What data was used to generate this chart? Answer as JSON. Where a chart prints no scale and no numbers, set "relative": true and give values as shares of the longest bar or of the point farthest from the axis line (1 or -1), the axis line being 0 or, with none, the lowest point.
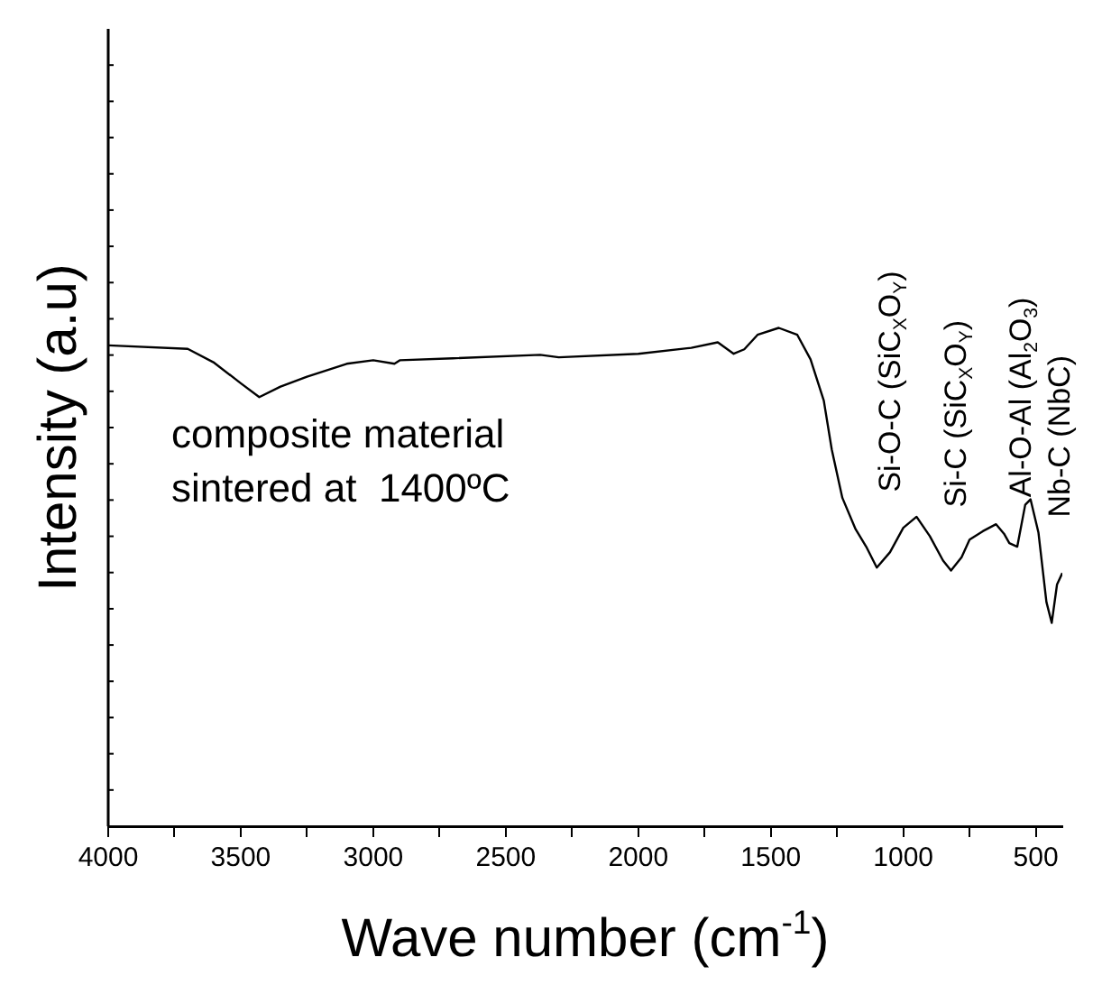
{
  "chart_data": {
    "type": "line",
    "relative": true,
    "xlabel": "Wave number (cm$^{-1}$)",
    "ylabel": "Intensity (a.u)",
    "color": "#000000",
    "marker": "none",
    "grid": false,
    "legend": false,
    "x": [
      4000,
      3700,
      3600,
      3500,
      3430,
      3350,
      3250,
      3100,
      3000,
      2920,
      2900,
      2700,
      2370,
      2300,
      2000,
      1800,
      1700,
      1640,
      1600,
      1550,
      1470,
      1400,
      1350,
      1300,
      1270,
      1230,
      1180,
      1140,
      1100,
      1050,
      1000,
      950,
      900,
      850,
      820,
      780,
      750,
      700,
      650,
      620,
      600,
      570,
      540,
      520,
      490,
      460,
      440,
      420,
      400
    ],
    "values": [
      0.965,
      0.958,
      0.93,
      0.889,
      0.861,
      0.882,
      0.902,
      0.928,
      0.935,
      0.928,
      0.935,
      0.939,
      0.946,
      0.941,
      0.948,
      0.96,
      0.971,
      0.948,
      0.957,
      0.986,
      1.0,
      0.986,
      0.937,
      0.854,
      0.756,
      0.659,
      0.596,
      0.561,
      0.519,
      0.55,
      0.599,
      0.621,
      0.582,
      0.533,
      0.513,
      0.54,
      0.575,
      0.592,
      0.606,
      0.587,
      0.568,
      0.561,
      0.645,
      0.656,
      0.589,
      0.45,
      0.408,
      0.485,
      0.508
    ],
    "xlim": [
      4000,
      400
    ],
    "xticks": [
      4000,
      {
        "value": 3750,
        "label": null
      },
      3500,
      {
        "value": 3250,
        "label": null
      },
      3000,
      {
        "value": 2750,
        "label": null
      },
      2500,
      {
        "value": 2250,
        "label": null
      },
      2000,
      {
        "value": 1750,
        "label": null
      },
      1500,
      {
        "value": 1250,
        "label": null
      },
      1000,
      {
        "value": 750,
        "label": null
      },
      500
    ],
    "annotations": [
      "composite material\nsintered at  1400ºC",
      "Si-O-C (SiC$_{X}$O$_{Y}$)",
      "Si-C (SiC$_{X}$O$_{Y}$)",
      "Al-O-Al (Al$_{2}$O$_{3}$)",
      "Nb-C (NbC)"
    ]
  }
}
